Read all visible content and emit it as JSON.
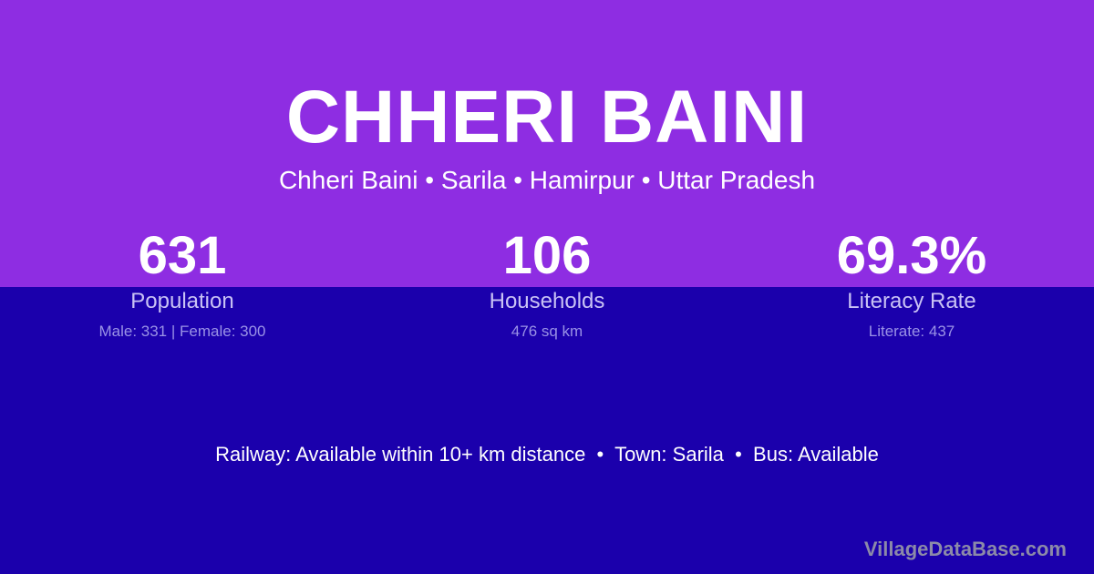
{
  "colors": {
    "top_background": "#8e2de2",
    "bottom_background": "#1b00ac",
    "text": "#ffffff"
  },
  "title": "CHHERI BAINI",
  "subtitle": "Chheri Baini • Sarila • Hamirpur • Uttar Pradesh",
  "stats": [
    {
      "value": "631",
      "label": "Population",
      "detail": "Male: 331 | Female: 300"
    },
    {
      "value": "106",
      "label": "Households",
      "detail": "476 sq km"
    },
    {
      "value": "69.3%",
      "label": "Literacy Rate",
      "detail": "Literate: 437"
    }
  ],
  "transport": "Railway: Available within 10+ km distance  •  Town: Sarila  •  Bus: Available",
  "brand": "VillageDataBase.com"
}
